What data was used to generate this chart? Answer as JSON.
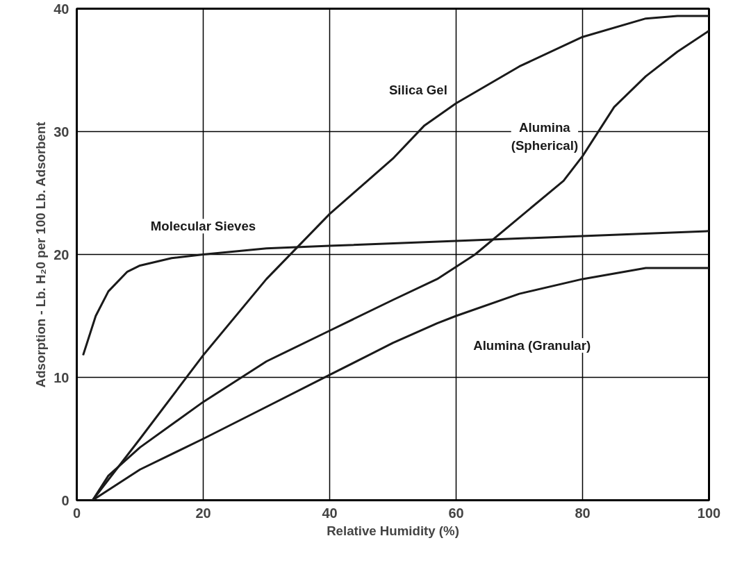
{
  "chart_data": {
    "type": "line",
    "xlabel": "Relative Humidity (%)",
    "ylabel": "Adsorption - Lb. H₂0 per 100 Lb. Adsorbent",
    "xlim": [
      0,
      100
    ],
    "ylim": [
      0,
      40
    ],
    "xticks": [
      0,
      20,
      40,
      60,
      80,
      100
    ],
    "yticks": [
      0,
      10,
      20,
      30,
      40
    ],
    "grid": true,
    "legend": false,
    "marker": "none",
    "line_style": "solid",
    "series": [
      {
        "name": "Silica Gel",
        "color": "#1a1a1a",
        "x": [
          2.5,
          10,
          20,
          30,
          40,
          50,
          55,
          60,
          70,
          80,
          90,
          95,
          100
        ],
        "values": [
          0,
          5.0,
          11.8,
          18,
          23.3,
          27.8,
          30.5,
          32.3,
          35.3,
          37.7,
          39.2,
          39.4,
          39.4
        ]
      },
      {
        "name": "Alumina\n(Spherical)",
        "color": "#1a1a1a",
        "x": [
          2.5,
          5,
          10,
          20,
          30,
          40,
          50,
          57,
          63,
          70,
          77,
          80,
          85,
          90,
          95,
          100
        ],
        "values": [
          0,
          2,
          4.3,
          8,
          11.3,
          13.8,
          16.3,
          18,
          20,
          23,
          26,
          28,
          32,
          34.5,
          36.5,
          38.2
        ]
      },
      {
        "name": "Molecular Sieves",
        "color": "#1a1a1a",
        "x": [
          1,
          3,
          5,
          8,
          10,
          15,
          20,
          30,
          40,
          60,
          80,
          100
        ],
        "values": [
          11.8,
          15,
          17,
          18.6,
          19.1,
          19.7,
          20,
          20.5,
          20.7,
          21.1,
          21.5,
          21.9
        ]
      },
      {
        "name": "Alumina (Granular)",
        "color": "#1a1a1a",
        "x": [
          2.5,
          10,
          20,
          30,
          40,
          50,
          57,
          60,
          70,
          80,
          90,
          100
        ],
        "values": [
          0,
          2.5,
          5,
          7.6,
          10.2,
          12.8,
          14.4,
          15,
          16.8,
          18,
          18.9,
          18.9
        ]
      }
    ]
  }
}
